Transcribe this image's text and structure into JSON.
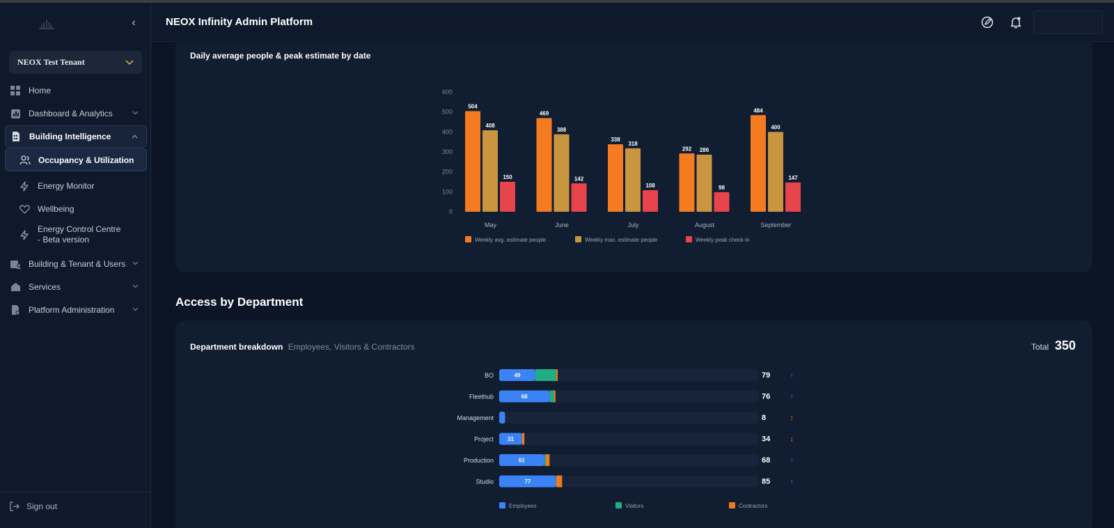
{
  "app": {
    "title": "NEOX Infinity Admin Platform"
  },
  "tenant": {
    "name": "NEOX Test Tenant"
  },
  "sidebar": {
    "items": [
      {
        "label": "Home"
      },
      {
        "label": "Dashboard & Analytics"
      },
      {
        "label": "Building Intelligence"
      },
      {
        "label": "Building & Tenant & Users"
      },
      {
        "label": "Services"
      },
      {
        "label": "Platform Administration"
      }
    ],
    "subitems": [
      {
        "label": "Occupancy & Utilization"
      },
      {
        "label": "Energy Monitor"
      },
      {
        "label": "Wellbeing"
      },
      {
        "label": "Energy Control Centre - Beta version"
      }
    ],
    "signout": "Sign out"
  },
  "colors": {
    "avg": "#f47b20",
    "max": "#c9963f",
    "peak": "#e8444b",
    "employees": "#3b82f6",
    "visitors": "#1fae84",
    "contractors": "#f07b1f"
  },
  "chart_data": [
    {
      "type": "bar",
      "title": "Daily average people & peak estimate by date",
      "categories": [
        "May",
        "June",
        "July",
        "August",
        "September"
      ],
      "series": [
        {
          "name": "Weekly avg. estimate people",
          "values": [
            504,
            469,
            338,
            292,
            484
          ]
        },
        {
          "name": "Weekly max. estimate people",
          "values": [
            408,
            388,
            318,
            286,
            400
          ]
        },
        {
          "name": "Weekly peak check-in",
          "values": [
            150,
            142,
            108,
            98,
            147
          ]
        }
      ],
      "yticks": [
        "0",
        "100",
        "200",
        "300",
        "400",
        "500",
        "600"
      ],
      "ylim": [
        0,
        600
      ],
      "legend": "bottom"
    },
    {
      "type": "bar",
      "orientation": "horizontal-stacked",
      "title": "Department breakdown",
      "subtitle": "Employees, Visitors & Contractors",
      "total_label": "Total",
      "total": "350",
      "categories": [
        "BO",
        "Fleethub",
        "Management",
        "Project",
        "Production",
        "Studio"
      ],
      "series": [
        {
          "name": "Employees",
          "values": [
            49,
            68,
            8,
            31,
            61,
            77
          ]
        },
        {
          "name": "Visitors",
          "values": [
            28,
            6,
            0,
            0,
            2,
            0
          ]
        },
        {
          "name": "Contractors",
          "values": [
            2,
            2,
            0,
            3,
            5,
            8
          ]
        }
      ],
      "totals": [
        "79",
        "76",
        "8",
        "34",
        "68",
        "85"
      ],
      "trends": [
        "↑",
        "↑",
        "↕",
        "↕",
        "↑",
        "↑"
      ],
      "trend_colors": [
        "#3b82f6",
        "#3b82f6",
        "#f07b1f",
        "#f07b1f",
        "#3b82f6",
        "#3b82f6"
      ],
      "xlim": [
        0,
        350
      ],
      "legend": "bottom"
    }
  ],
  "sections": {
    "access_title": "Access by Department"
  }
}
